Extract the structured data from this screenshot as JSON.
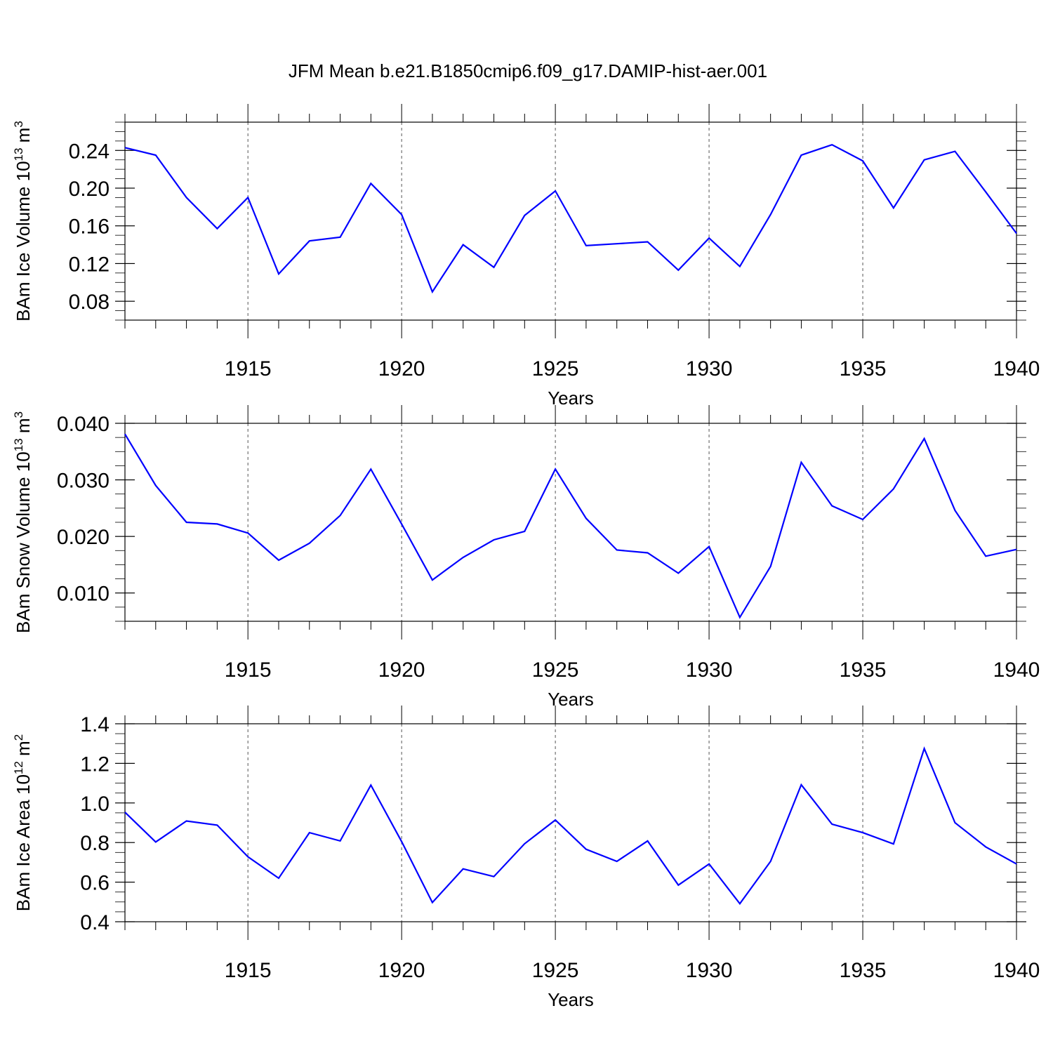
{
  "title": "JFM Mean b.e21.B1850cmip6.f09_g17.DAMIP-hist-aer.001",
  "colors": {
    "series": "#0000ff",
    "axis": "#000000",
    "grid": "#555555"
  },
  "chart_data": [
    {
      "type": "line",
      "ylabel": "BAm Ice Volume 10",
      "ylabel_exp": "13",
      "ylabel_unit": " m",
      "ylabel_unit_exp": "3",
      "xlabel": "Years",
      "xlim": [
        1911,
        1940
      ],
      "ylim": [
        0.06,
        0.27
      ],
      "yticks": [
        0.08,
        0.12,
        0.16,
        0.2,
        0.24
      ],
      "ytick_labels": [
        "0.08",
        "0.12",
        "0.16",
        "0.20",
        "0.24"
      ],
      "xticks": [
        1915,
        1920,
        1925,
        1930,
        1935,
        1940
      ],
      "xtick_labels": [
        "1915",
        "1920",
        "1925",
        "1930",
        "1935",
        "1940"
      ],
      "grid_x": true,
      "series": [
        {
          "name": "BAm Ice Volume",
          "x": [
            1911,
            1912,
            1913,
            1914,
            1915,
            1916,
            1917,
            1918,
            1919,
            1920,
            1921,
            1922,
            1923,
            1924,
            1925,
            1926,
            1927,
            1928,
            1929,
            1930,
            1931,
            1932,
            1933,
            1934,
            1935,
            1936,
            1937,
            1938,
            1939,
            1940
          ],
          "values": [
            0.243,
            0.235,
            0.19,
            0.157,
            0.19,
            0.109,
            0.144,
            0.148,
            0.205,
            0.172,
            0.09,
            0.14,
            0.116,
            0.171,
            0.197,
            0.139,
            0.141,
            0.143,
            0.113,
            0.147,
            0.117,
            0.172,
            0.235,
            0.246,
            0.229,
            0.179,
            0.23,
            0.239,
            0.196,
            0.152
          ]
        }
      ]
    },
    {
      "type": "line",
      "ylabel": "BAm Snow Volume 10",
      "ylabel_exp": "13",
      "ylabel_unit": " m",
      "ylabel_unit_exp": "3",
      "xlabel": "Years",
      "xlim": [
        1911,
        1940
      ],
      "ylim": [
        0.005,
        0.04
      ],
      "yticks": [
        0.01,
        0.02,
        0.03,
        0.04
      ],
      "ytick_labels": [
        "0.010",
        "0.020",
        "0.030",
        "0.040"
      ],
      "xticks": [
        1915,
        1920,
        1925,
        1930,
        1935,
        1940
      ],
      "xtick_labels": [
        "1915",
        "1920",
        "1925",
        "1930",
        "1935",
        "1940"
      ],
      "grid_x": true,
      "series": [
        {
          "name": "BAm Snow Volume",
          "x": [
            1911,
            1912,
            1913,
            1914,
            1915,
            1916,
            1917,
            1918,
            1919,
            1920,
            1921,
            1922,
            1923,
            1924,
            1925,
            1926,
            1927,
            1928,
            1929,
            1930,
            1931,
            1932,
            1933,
            1934,
            1935,
            1936,
            1937,
            1938,
            1939,
            1940
          ],
          "values": [
            0.0381,
            0.029,
            0.0225,
            0.0222,
            0.0206,
            0.0158,
            0.0188,
            0.0237,
            0.0319,
            0.0222,
            0.0123,
            0.0163,
            0.0194,
            0.0209,
            0.0319,
            0.0232,
            0.0176,
            0.0171,
            0.0135,
            0.0182,
            0.0057,
            0.0147,
            0.0331,
            0.0254,
            0.023,
            0.0284,
            0.0373,
            0.0246,
            0.0165,
            0.0177
          ]
        }
      ]
    },
    {
      "type": "line",
      "ylabel": "BAm Ice Area 10",
      "ylabel_exp": "12",
      "ylabel_unit": " m",
      "ylabel_unit_exp": "2",
      "xlabel": "Years",
      "xlim": [
        1911,
        1940
      ],
      "ylim": [
        0.4,
        1.4
      ],
      "yticks": [
        0.4,
        0.6,
        0.8,
        1.0,
        1.2,
        1.4
      ],
      "ytick_labels": [
        "0.4",
        "0.6",
        "0.8",
        "1.0",
        "1.2",
        "1.4"
      ],
      "xticks": [
        1915,
        1920,
        1925,
        1930,
        1935,
        1940
      ],
      "xtick_labels": [
        "1915",
        "1920",
        "1925",
        "1930",
        "1935",
        "1940"
      ],
      "grid_x": true,
      "series": [
        {
          "name": "BAm Ice Area",
          "x": [
            1911,
            1912,
            1913,
            1914,
            1915,
            1916,
            1917,
            1918,
            1919,
            1920,
            1921,
            1922,
            1923,
            1924,
            1925,
            1926,
            1927,
            1928,
            1929,
            1930,
            1931,
            1932,
            1933,
            1934,
            1935,
            1936,
            1937,
            1938,
            1939,
            1940
          ],
          "values": [
            0.953,
            0.803,
            0.909,
            0.888,
            0.728,
            0.62,
            0.85,
            0.808,
            1.09,
            0.805,
            0.497,
            0.667,
            0.628,
            0.794,
            0.914,
            0.766,
            0.705,
            0.808,
            0.585,
            0.692,
            0.491,
            0.705,
            1.092,
            0.893,
            0.85,
            0.793,
            1.275,
            0.9,
            0.778,
            0.692
          ]
        }
      ]
    }
  ]
}
